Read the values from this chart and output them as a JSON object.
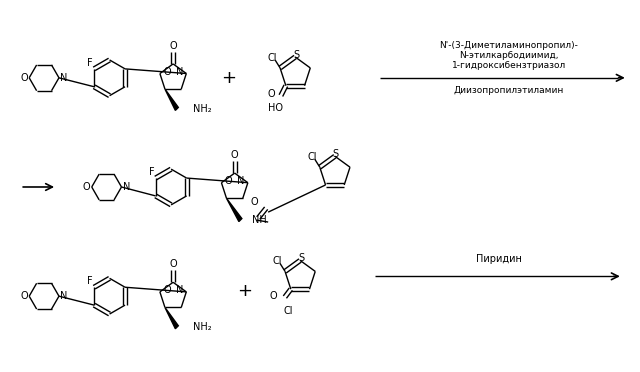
{
  "bg_color": "#ffffff",
  "text_color": "#000000",
  "line_color": "#000000",
  "reagent1_line1": "N'-(3-Диметиламинопропил)-",
  "reagent1_line2": "N-этилкарбодиимид,",
  "reagent1_line3": "1-гидроксибензтриазол",
  "reagent2": "Диизопропилэтиламин",
  "reagent3": "Пиридин"
}
